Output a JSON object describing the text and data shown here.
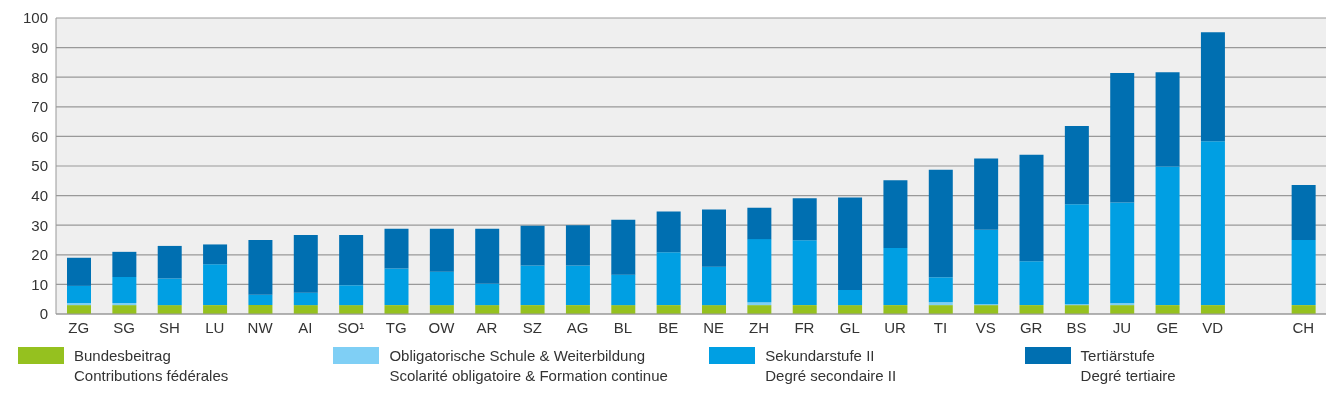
{
  "chart_data": {
    "type": "bar",
    "stacked": true,
    "categories": [
      "ZG",
      "SG",
      "SH",
      "LU",
      "NW",
      "AI",
      "SO¹",
      "TG",
      "OW",
      "AR",
      "SZ",
      "AG",
      "BL",
      "BE",
      "NE",
      "ZH",
      "FR",
      "GL",
      "UR",
      "TI",
      "VS",
      "GR",
      "BS",
      "JU",
      "GE",
      "VD",
      null,
      "CH"
    ],
    "series": [
      {
        "name": "Bundesbeitrag\nContributions fédérales",
        "color": "#95c11f",
        "values": [
          3,
          3,
          3,
          3,
          3,
          3,
          3,
          3,
          3,
          3,
          3,
          3,
          3,
          3,
          3,
          3,
          3,
          3,
          3,
          3,
          3,
          3,
          3,
          3,
          3,
          3,
          null,
          3
        ]
      },
      {
        "name": "Obligatorische Schule & Weiterbildung\nScolarité obligatoire & Formation continue",
        "color": "#7fcff5",
        "values": [
          0.7,
          0.7,
          0,
          0,
          0,
          0,
          0,
          0,
          0,
          0,
          0,
          0,
          0,
          0,
          0,
          1,
          0,
          0,
          0,
          1,
          0.3,
          0,
          0.3,
          0.6,
          0,
          0,
          null,
          0
        ]
      },
      {
        "name": "Sekundarstufe II\nDegré secondaire II",
        "color": "#009fe3",
        "values": [
          5.8,
          8.8,
          9,
          13.8,
          3.5,
          4.2,
          6.7,
          12.4,
          11.3,
          7.2,
          13.4,
          13.4,
          10.3,
          17.9,
          13,
          21.3,
          21.9,
          5.1,
          19.3,
          8.4,
          25.2,
          14.8,
          33.8,
          34.1,
          46.8,
          55.4,
          null,
          22
        ]
      },
      {
        "name": "Tertiärstufe\nDegré tertiaire",
        "color": "#006fb1",
        "values": [
          9.5,
          8.5,
          11,
          6.7,
          18.5,
          19.5,
          17,
          13.4,
          14.5,
          18.6,
          13.4,
          13.6,
          18.5,
          13.7,
          19.3,
          10.6,
          14.2,
          31.3,
          22.9,
          36.3,
          24,
          36,
          26.4,
          43.7,
          31.9,
          36.8,
          null,
          18.6
        ]
      }
    ],
    "ylim": [
      0,
      100
    ],
    "yticks": [
      0,
      10,
      20,
      30,
      40,
      50,
      60,
      70,
      80,
      90,
      100
    ],
    "grid": "y",
    "legend": "bottom"
  }
}
